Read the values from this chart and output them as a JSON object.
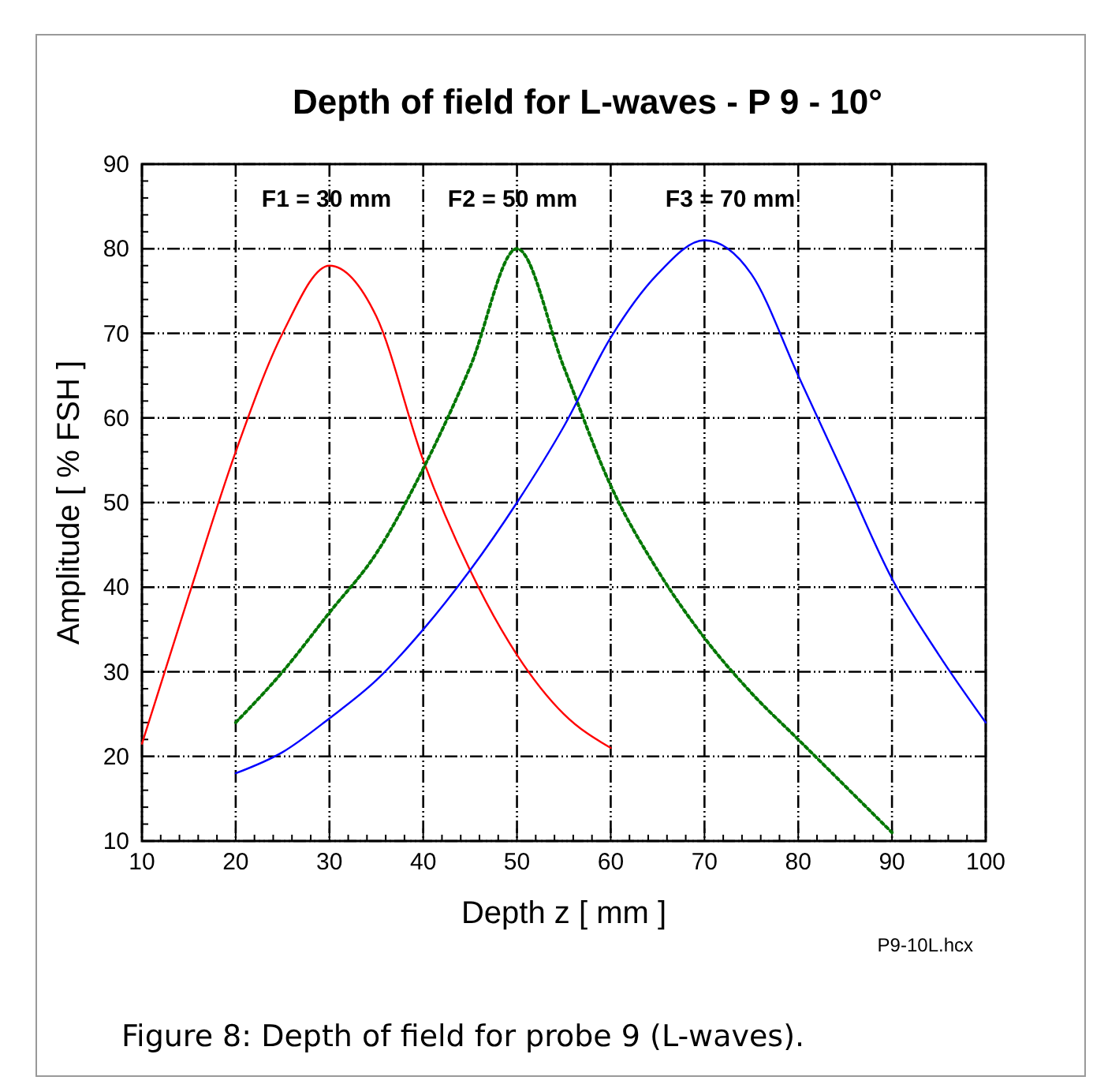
{
  "chart_data": {
    "type": "line",
    "title": "Depth of field for L-waves - P 9 - 10°",
    "xlabel": "Depth z [ mm ]",
    "ylabel": "Amplitude [ % FSH ]",
    "xlim": [
      10,
      100
    ],
    "ylim": [
      10,
      90
    ],
    "xticks": [
      10,
      20,
      30,
      40,
      50,
      60,
      70,
      80,
      90,
      100
    ],
    "yticks": [
      10,
      20,
      30,
      40,
      50,
      60,
      70,
      80,
      90
    ],
    "grid": true,
    "marker": "none",
    "series": [
      {
        "color": "#ff0000",
        "line_style": "solid",
        "x": [
          10,
          15,
          20,
          25,
          30,
          35,
          40,
          45,
          50,
          55,
          60
        ],
        "values": [
          21.5,
          39,
          56,
          70,
          78,
          72,
          55,
          42,
          32,
          25,
          21
        ]
      },
      {
        "color": "#007700",
        "line_style": "dotted",
        "x": [
          20,
          25,
          30,
          35,
          40,
          45,
          50,
          55,
          60,
          65,
          70,
          75,
          80,
          85,
          90
        ],
        "values": [
          24,
          30,
          37,
          44,
          54,
          66,
          80,
          66,
          52,
          42,
          34,
          27.5,
          22,
          16.5,
          11
        ]
      },
      {
        "color": "#0000ff",
        "line_style": "solid",
        "x": [
          20,
          25,
          30,
          35,
          40,
          45,
          50,
          55,
          60,
          65,
          70,
          75,
          80,
          85,
          90,
          95,
          100
        ],
        "values": [
          18,
          20.5,
          24.5,
          29,
          35,
          42,
          50,
          59,
          69.5,
          77,
          81,
          77,
          65,
          53,
          41,
          32,
          24
        ]
      }
    ],
    "annotations": [
      "F1 = 30 mm",
      "F2 = 50 mm",
      "F3 = 70 mm",
      "P9-10L.hcx",
      "Figure 8: Depth of field for probe 9 (L-waves)."
    ]
  }
}
